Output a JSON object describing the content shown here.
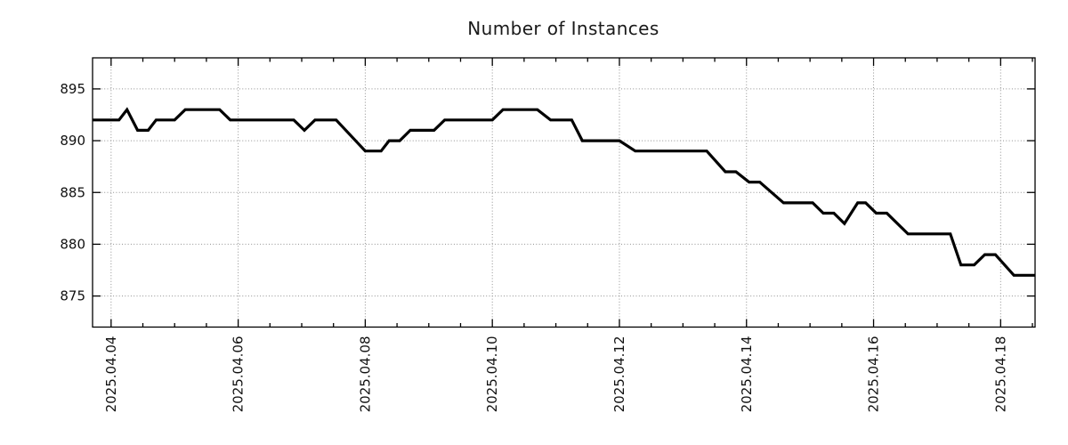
{
  "title": "Number of Instances",
  "chart_data": {
    "type": "line",
    "title": "Number of Instances",
    "xlabel": "",
    "ylabel": "",
    "legend": "none",
    "grid": "dotted",
    "line_color": "#000000",
    "grid_color": "#8f8f8f",
    "ylim": [
      872,
      898
    ],
    "y_ticks": [
      875,
      880,
      885,
      890,
      895
    ],
    "x_epoch": "2025-04-04 00:00",
    "x_range_days": [
      -0.2917,
      14.5417
    ],
    "minor_x_tick_interval_days": 0.5,
    "x_ticks": [
      {
        "label": "2025.04.04",
        "day": 0
      },
      {
        "label": "2025.04.06",
        "day": 2
      },
      {
        "label": "2025.04.08",
        "day": 4
      },
      {
        "label": "2025.04.10",
        "day": 6
      },
      {
        "label": "2025.04.12",
        "day": 8
      },
      {
        "label": "2025.04.14",
        "day": 10
      },
      {
        "label": "2025.04.16",
        "day": 12
      },
      {
        "label": "2025.04.18",
        "day": 14
      }
    ],
    "series": [
      {
        "name": "Number of Instances",
        "color": "#000000",
        "points": [
          [
            "2025-04-03 17:00",
            892
          ],
          [
            "2025-04-04 03:00",
            892
          ],
          [
            "2025-04-04 06:00",
            893
          ],
          [
            "2025-04-04 10:00",
            891
          ],
          [
            "2025-04-04 14:00",
            891
          ],
          [
            "2025-04-04 17:00",
            892
          ],
          [
            "2025-04-05 00:00",
            892
          ],
          [
            "2025-04-05 04:00",
            893
          ],
          [
            "2025-04-05 17:00",
            893
          ],
          [
            "2025-04-05 21:00",
            892
          ],
          [
            "2025-04-06 21:00",
            892
          ],
          [
            "2025-04-07 01:00",
            891
          ],
          [
            "2025-04-07 05:00",
            892
          ],
          [
            "2025-04-07 13:00",
            892
          ],
          [
            "2025-04-08 00:00",
            889
          ],
          [
            "2025-04-08 06:00",
            889
          ],
          [
            "2025-04-08 09:00",
            890
          ],
          [
            "2025-04-08 13:00",
            890
          ],
          [
            "2025-04-08 17:00",
            891
          ],
          [
            "2025-04-09 02:00",
            891
          ],
          [
            "2025-04-09 06:00",
            892
          ],
          [
            "2025-04-10 00:00",
            892
          ],
          [
            "2025-04-10 04:00",
            893
          ],
          [
            "2025-04-10 17:00",
            893
          ],
          [
            "2025-04-10 22:00",
            892
          ],
          [
            "2025-04-11 06:00",
            892
          ],
          [
            "2025-04-11 10:00",
            890
          ],
          [
            "2025-04-12 00:00",
            890
          ],
          [
            "2025-04-12 06:00",
            889
          ],
          [
            "2025-04-13 09:00",
            889
          ],
          [
            "2025-04-13 16:00",
            887
          ],
          [
            "2025-04-13 20:00",
            887
          ],
          [
            "2025-04-14 01:00",
            886
          ],
          [
            "2025-04-14 05:00",
            886
          ],
          [
            "2025-04-14 14:00",
            884
          ],
          [
            "2025-04-15 01:00",
            884
          ],
          [
            "2025-04-15 05:00",
            883
          ],
          [
            "2025-04-15 09:00",
            883
          ],
          [
            "2025-04-15 13:00",
            882
          ],
          [
            "2025-04-15 18:00",
            884
          ],
          [
            "2025-04-15 21:00",
            884
          ],
          [
            "2025-04-16 01:00",
            883
          ],
          [
            "2025-04-16 05:00",
            883
          ],
          [
            "2025-04-16 13:00",
            881
          ],
          [
            "2025-04-17 05:00",
            881
          ],
          [
            "2025-04-17 09:00",
            878
          ],
          [
            "2025-04-17 14:00",
            878
          ],
          [
            "2025-04-17 18:00",
            879
          ],
          [
            "2025-04-17 22:00",
            879
          ],
          [
            "2025-04-18 05:00",
            877
          ],
          [
            "2025-04-18 13:00",
            877
          ]
        ]
      }
    ]
  }
}
